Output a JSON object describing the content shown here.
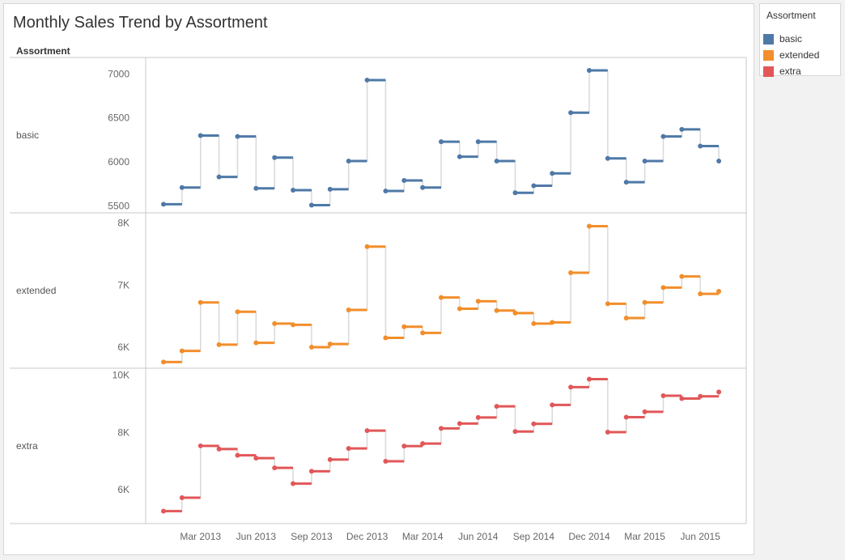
{
  "chart_data": {
    "type": "line",
    "line_shape": "step",
    "title": "Monthly Sales Trend by Assortment",
    "row_header": "Assortment",
    "legend": {
      "title": "Assortment",
      "placement": "right",
      "items": [
        {
          "label": "basic",
          "color": "#4e79a7"
        },
        {
          "label": "extended",
          "color": "#f28e2b"
        },
        {
          "label": "extra",
          "color": "#e15759"
        }
      ]
    },
    "x_tick_labels": [
      "Mar 2013",
      "Jun 2013",
      "Sep 2013",
      "Dec 2013",
      "Mar 2014",
      "Jun 2014",
      "Sep 2014",
      "Dec 2014",
      "Mar 2015",
      "Jun 2015"
    ],
    "x": [
      "2013-01",
      "2013-02",
      "2013-03",
      "2013-04",
      "2013-05",
      "2013-06",
      "2013-07",
      "2013-08",
      "2013-09",
      "2013-10",
      "2013-11",
      "2013-12",
      "2014-01",
      "2014-02",
      "2014-03",
      "2014-04",
      "2014-05",
      "2014-06",
      "2014-07",
      "2014-08",
      "2014-09",
      "2014-10",
      "2014-11",
      "2014-12",
      "2015-01",
      "2015-02",
      "2015-03",
      "2015-04",
      "2015-05",
      "2015-06",
      "2015-07"
    ],
    "series": [
      {
        "name": "basic",
        "color": "#4e79a7",
        "ylim": [
          5450,
          7150
        ],
        "ticks": [
          {
            "value": 5500,
            "label": "5500"
          },
          {
            "value": 6000,
            "label": "6000"
          },
          {
            "value": 6500,
            "label": "6500"
          },
          {
            "value": 7000,
            "label": "7000"
          }
        ],
        "values": [
          5520,
          5710,
          6300,
          5830,
          6290,
          5700,
          6050,
          5680,
          5510,
          5690,
          6010,
          6930,
          5670,
          5790,
          5710,
          6230,
          6060,
          6230,
          6010,
          5650,
          5730,
          5870,
          6560,
          7040,
          6040,
          5770,
          6010,
          6290,
          6370,
          6180,
          6010
        ]
      },
      {
        "name": "extended",
        "color": "#f28e2b",
        "ylim": [
          5700,
          8100
        ],
        "ticks": [
          {
            "value": 6000,
            "label": "6K"
          },
          {
            "value": 7000,
            "label": "7K"
          },
          {
            "value": 8000,
            "label": "8K"
          }
        ],
        "values": [
          5760,
          5940,
          6720,
          6040,
          6570,
          6070,
          6380,
          6360,
          6000,
          6050,
          6600,
          7620,
          6150,
          6330,
          6230,
          6800,
          6620,
          6740,
          6590,
          6550,
          6380,
          6400,
          7200,
          7950,
          6700,
          6470,
          6720,
          6960,
          7140,
          6860,
          6900
        ]
      },
      {
        "name": "extra",
        "color": "#e15759",
        "ylim": [
          4900,
          10100
        ],
        "ticks": [
          {
            "value": 6000,
            "label": "6K"
          },
          {
            "value": 8000,
            "label": "8K"
          },
          {
            "value": 10000,
            "label": "10K"
          }
        ],
        "values": [
          5250,
          5720,
          7530,
          7420,
          7200,
          7100,
          6760,
          6210,
          6640,
          7050,
          7440,
          8060,
          6990,
          7520,
          7610,
          8140,
          8310,
          8520,
          8910,
          8030,
          8300,
          8960,
          9580,
          9860,
          8010,
          8530,
          8720,
          9280,
          9180,
          9260,
          9410
        ]
      }
    ]
  }
}
